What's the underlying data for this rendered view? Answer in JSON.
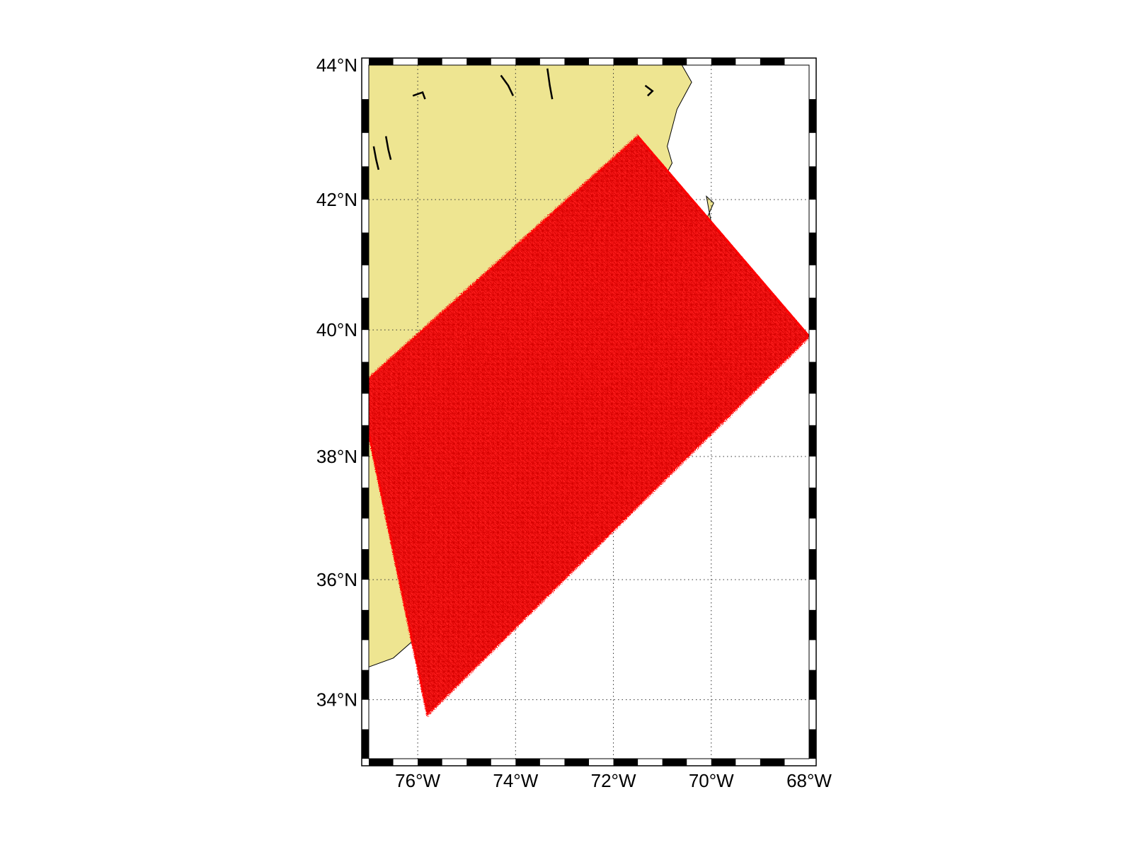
{
  "chart_data": {
    "type": "map",
    "projection": "mercator",
    "lon_range": [
      -77,
      -68
    ],
    "lat_range": [
      33,
      44
    ],
    "grid": true,
    "frame": "black-white checkered border",
    "lon_ticks": [
      {
        "value": -76,
        "label": "76°W"
      },
      {
        "value": -74,
        "label": "74°W"
      },
      {
        "value": -72,
        "label": "72°W"
      },
      {
        "value": -70,
        "label": "70°W"
      },
      {
        "value": -68,
        "label": "68°W"
      }
    ],
    "lat_ticks": [
      {
        "value": 34,
        "label": "34°N"
      },
      {
        "value": 36,
        "label": "36°N"
      },
      {
        "value": 38,
        "label": "38°N"
      },
      {
        "value": 40,
        "label": "40°N"
      },
      {
        "value": 42,
        "label": "42°N"
      },
      {
        "value": 44,
        "label": "44°N"
      }
    ],
    "land_color": "#EEE591",
    "coastline_color": "#000000",
    "marker_color": "#FF0000",
    "marker_symbol": "*",
    "domain_corners": [
      {
        "lon": -75.8,
        "lat": 33.75
      },
      {
        "lon": -68.0,
        "lat": 39.9
      },
      {
        "lon": -71.5,
        "lat": 42.95
      },
      {
        "lon": -77.2,
        "lat": 39.1
      }
    ],
    "land_outline": [
      {
        "lon": -77,
        "lat": 44
      },
      {
        "lon": -70.6,
        "lat": 44
      },
      {
        "lon": -70.4,
        "lat": 43.75
      },
      {
        "lon": -70.7,
        "lat": 43.35
      },
      {
        "lon": -70.9,
        "lat": 42.8
      },
      {
        "lon": -70.8,
        "lat": 42.55
      },
      {
        "lon": -71.05,
        "lat": 42.2
      },
      {
        "lon": -70.6,
        "lat": 42.0
      },
      {
        "lon": -70.5,
        "lat": 41.8
      },
      {
        "lon": -70.1,
        "lat": 41.7
      },
      {
        "lon": -69.95,
        "lat": 41.95
      },
      {
        "lon": -70.1,
        "lat": 42.05
      },
      {
        "lon": -70.0,
        "lat": 41.65
      },
      {
        "lon": -70.6,
        "lat": 41.55
      },
      {
        "lon": -71.4,
        "lat": 41.45
      },
      {
        "lon": -72.5,
        "lat": 41.25
      },
      {
        "lon": -73.7,
        "lat": 40.9
      },
      {
        "lon": -74.0,
        "lat": 40.5
      },
      {
        "lon": -74.0,
        "lat": 40.0
      },
      {
        "lon": -74.3,
        "lat": 39.5
      },
      {
        "lon": -74.9,
        "lat": 38.95
      },
      {
        "lon": -75.1,
        "lat": 38.6
      },
      {
        "lon": -75.4,
        "lat": 37.9
      },
      {
        "lon": -75.9,
        "lat": 37.1
      },
      {
        "lon": -76.0,
        "lat": 36.5
      },
      {
        "lon": -75.6,
        "lat": 35.6
      },
      {
        "lon": -75.8,
        "lat": 35.2
      },
      {
        "lon": -76.5,
        "lat": 34.7
      },
      {
        "lon": -77,
        "lat": 34.55
      },
      {
        "lon": -77,
        "lat": 44
      }
    ]
  }
}
